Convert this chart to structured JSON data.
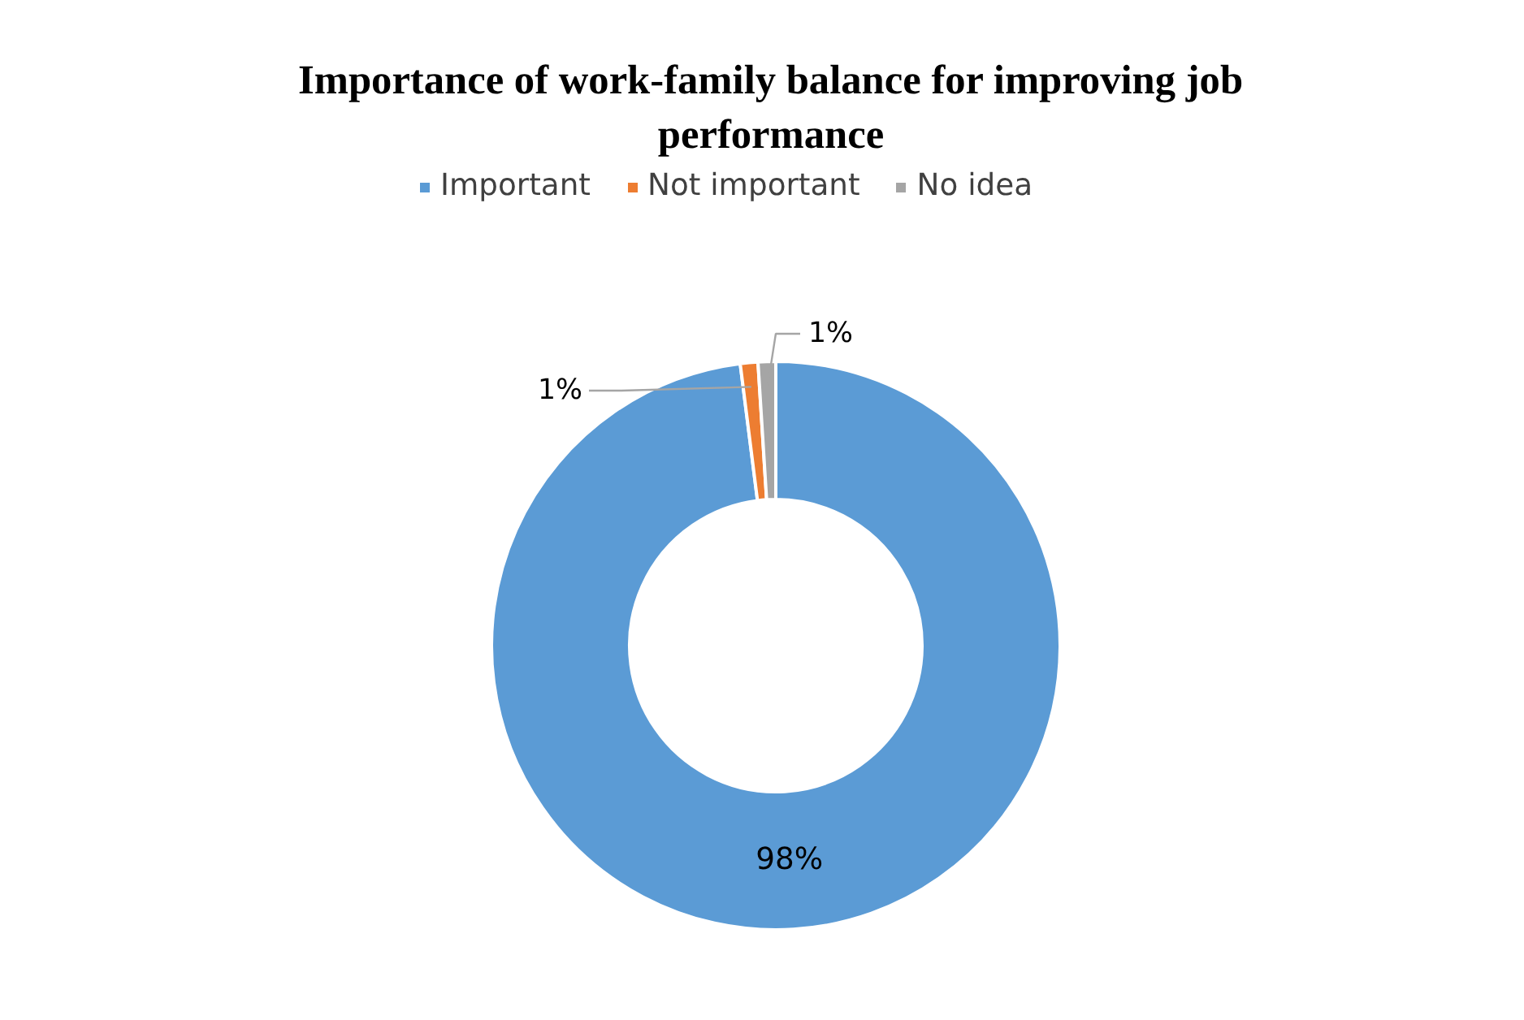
{
  "chart_data": {
    "type": "donut",
    "title": "Importance of work-family balance for improving job performance",
    "categories": [
      "Important",
      "Not important",
      "No idea"
    ],
    "values": [
      98,
      1,
      1
    ],
    "value_labels": [
      "98%",
      "1%",
      "1%"
    ],
    "colors": [
      "#5b9bd5",
      "#ed7d31",
      "#a5a5a5"
    ],
    "legend": "top"
  }
}
